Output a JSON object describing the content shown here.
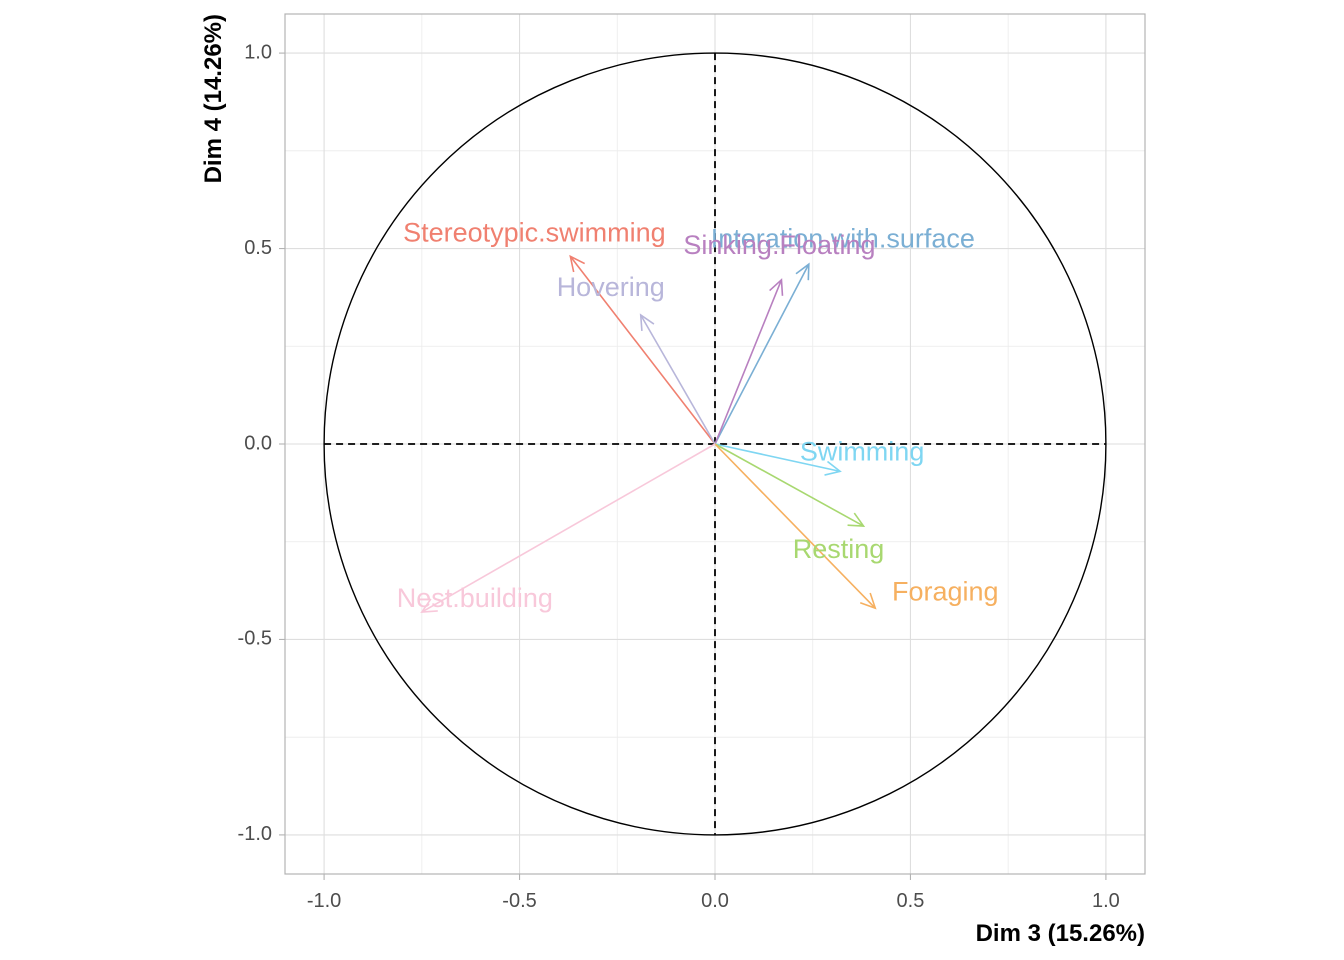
{
  "chart_data": {
    "type": "scatter",
    "subtype": "pca-correlation-circle",
    "title": "",
    "xlabel": "Dim 3 (15.26%)",
    "ylabel": "Dim 4 (14.26%)",
    "xlim": [
      -1.1,
      1.1
    ],
    "ylim": [
      -1.1,
      1.1
    ],
    "x_ticks": [
      -1.0,
      -0.5,
      0.0,
      0.5,
      1.0
    ],
    "x_tick_labels": [
      "-1.0",
      "-0.5",
      "0.0",
      "0.5",
      "1.0"
    ],
    "y_ticks": [
      -1.0,
      -0.5,
      0.0,
      0.5,
      1.0
    ],
    "y_tick_labels": [
      "-1.0",
      "-0.5",
      "0.0",
      "0.5",
      "1.0"
    ],
    "grid": true,
    "unit_circle": true,
    "reference_lines": {
      "x": 0,
      "y": 0,
      "style": "dashed"
    },
    "variables": [
      {
        "name": "Stereotypic.swimming",
        "x": -0.37,
        "y": 0.48,
        "color": "#F08070"
      },
      {
        "name": "Interation.with.surface",
        "x": 0.24,
        "y": 0.46,
        "color": "#7BAFD4"
      },
      {
        "name": "Sinking.Floating",
        "x": 0.17,
        "y": 0.42,
        "color": "#B880C0"
      },
      {
        "name": "Hovering",
        "x": -0.19,
        "y": 0.33,
        "color": "#B8B6DA"
      },
      {
        "name": "Swimming",
        "x": 0.32,
        "y": -0.07,
        "color": "#7FD6F2"
      },
      {
        "name": "Resting",
        "x": 0.38,
        "y": -0.21,
        "color": "#A8D870"
      },
      {
        "name": "Foraging",
        "x": 0.41,
        "y": -0.42,
        "color": "#F6B060"
      },
      {
        "name": "Nest.building",
        "x": -0.75,
        "y": -0.43,
        "color": "#F8C8DA"
      }
    ]
  }
}
